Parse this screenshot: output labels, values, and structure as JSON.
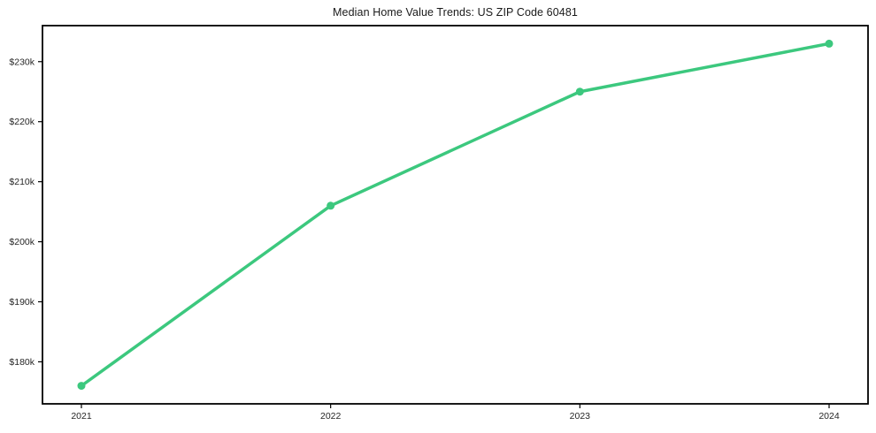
{
  "chart_data": {
    "type": "line",
    "title": "Median Home Value Trends: US ZIP Code 60481",
    "x": [
      "2021",
      "2022",
      "2023",
      "2024"
    ],
    "values": [
      176000,
      206000,
      225000,
      233000
    ],
    "y_ticks": [
      {
        "label": "$180k",
        "value": 180000
      },
      {
        "label": "$190k",
        "value": 190000
      },
      {
        "label": "$200k",
        "value": 200000
      },
      {
        "label": "$210k",
        "value": 210000
      },
      {
        "label": "$220k",
        "value": 220000
      },
      {
        "label": "$230k",
        "value": 230000
      }
    ],
    "ylim": [
      173000,
      236000
    ],
    "xlabel": "",
    "ylabel": "",
    "grid": false,
    "legend": "none",
    "marker": "circle",
    "line_color": "#3cc87e",
    "axis_color": "#000000",
    "tick_label_color": "#262626",
    "background_color": "#ffffff"
  }
}
